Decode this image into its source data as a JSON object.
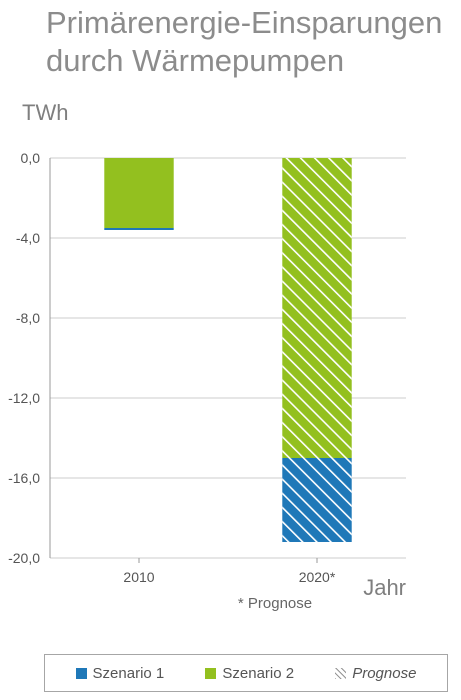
{
  "title_lines": [
    "Primärenergie-Einsparungen",
    "durch Wärmepumpen"
  ],
  "colors": {
    "scenario1": "#1f78b8",
    "scenario2": "#93c01f",
    "hatch": "#ffffff",
    "grid": "#cccccc",
    "axis": "#999999"
  },
  "chart_data": {
    "type": "bar",
    "title": "Primärenergie-Einsparungen durch Wärmepumpen",
    "ylabel": "TWh",
    "xlabel": "Jahr",
    "ylim": [
      -20,
      0
    ],
    "yticks": [
      0,
      -4,
      -8,
      -12,
      -16,
      -20
    ],
    "ytick_labels": [
      "0,0",
      "-4,0",
      "-8,0",
      "-12,0",
      "-16,0",
      "-20,0"
    ],
    "categories": [
      "2010",
      "2020*"
    ],
    "grid": true,
    "stacked": true,
    "series": [
      {
        "name": "Szenario 1",
        "values": [
          -0.1,
          -4.2
        ],
        "forecast": [
          false,
          true
        ]
      },
      {
        "name": "Szenario 2",
        "values": [
          -3.5,
          -15.0
        ],
        "forecast": [
          false,
          true
        ]
      }
    ],
    "legend": {
      "position": "bottom",
      "entries": [
        {
          "label": "Szenario 1",
          "style": "solid",
          "color": "#1f78b8"
        },
        {
          "label": "Szenario 2",
          "style": "solid",
          "color": "#93c01f"
        },
        {
          "label": "Prognose",
          "style": "hatch",
          "color": "#8c8c8c"
        }
      ]
    },
    "annotations": [
      "* Prognose"
    ]
  }
}
